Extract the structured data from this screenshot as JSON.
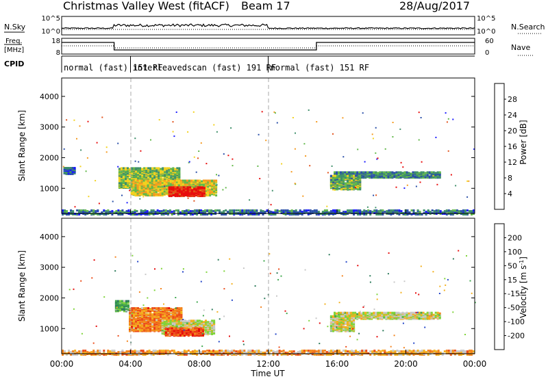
{
  "header": {
    "station": "Christmas Valley West (fitACF)",
    "beam": "Beam 17",
    "date": "28/Aug/2017"
  },
  "sky_panel": {
    "left_label": "N.Sky",
    "right_label": "N.Search",
    "tick_top": "10^5",
    "tick_bottom": "10^0",
    "right_tick_top": "10^5",
    "right_tick_bottom": "10^0"
  },
  "freq_panel": {
    "left_label_top": "Freq.",
    "left_label_bottom": "[MHz]",
    "right_label": "Nave",
    "tick_top": "18",
    "tick_bottom": "8",
    "right_tick_top": "60",
    "right_tick_bottom": "0"
  },
  "cpid_panel": {
    "label": "CPID",
    "segments": [
      {
        "start": 0,
        "end": 4,
        "text": "normal (fast)  151 RF"
      },
      {
        "start": 4,
        "end": 12,
        "text": "interleavedscan (fast) 191 RF"
      },
      {
        "start": 12,
        "end": 24,
        "text": "normal (fast)  151 RF"
      }
    ]
  },
  "chart_data": [
    {
      "type": "heatmap",
      "name": "power",
      "ylabel": "Slant Range [km]",
      "yticks": [
        "1000",
        "2000",
        "3000",
        "4000"
      ],
      "colorbar_label": "Power [dB]",
      "colorbar_ticks": [
        "4",
        "8",
        "12",
        "16",
        "20",
        "24",
        "28"
      ],
      "colorbar_colors": [
        "#1a1aff",
        "#2a4fa8",
        "#3f8f6a",
        "#62b84a",
        "#f3d21e",
        "#f59b20",
        "#e2521b",
        "#e80d0d"
      ],
      "range_km": [
        180,
        4600
      ],
      "x_hours": [
        0,
        24
      ],
      "regions": [
        {
          "t0": 3.3,
          "t1": 6.8,
          "r0": 1050,
          "r1": 1700,
          "level": 0.45
        },
        {
          "t0": 4.0,
          "t1": 9.0,
          "r0": 800,
          "r1": 1300,
          "level": 0.55
        },
        {
          "t0": 6.2,
          "t1": 8.3,
          "r0": 780,
          "r1": 1080,
          "level": 0.95
        },
        {
          "t0": 0.1,
          "t1": 0.8,
          "r0": 1500,
          "r1": 1700,
          "level": 0.2
        },
        {
          "t0": 15.8,
          "t1": 22.0,
          "r0": 1380,
          "r1": 1560,
          "level": 0.3
        },
        {
          "t0": 15.6,
          "t1": 17.3,
          "r0": 1000,
          "r1": 1450,
          "level": 0.4
        },
        {
          "t0": 0.0,
          "t1": 24.0,
          "r0": 180,
          "r1": 320,
          "level": 0.25
        }
      ]
    },
    {
      "type": "heatmap",
      "name": "velocity",
      "ylabel": "Slant Range [km]",
      "yticks": [
        "1000",
        "2000",
        "3000",
        "4000"
      ],
      "colorbar_label": "Velocity [m s^-1]",
      "colorbar_ticks": [
        "200",
        "100",
        "50",
        "15",
        "-15",
        "-50",
        "-100",
        "-200"
      ],
      "colorbar_colors": [
        "#2345c8",
        "#2e7c5c",
        "#3fa84e",
        "#7fd43a",
        "#c8c8c8",
        "#f3b01e",
        "#f4841e",
        "#ec4d1a",
        "#e60d0d"
      ],
      "range_km": [
        180,
        4600
      ],
      "x_hours": [
        0,
        24
      ],
      "regions": [
        {
          "t0": 3.9,
          "t1": 7.0,
          "r0": 950,
          "r1": 1700,
          "level": 0.72
        },
        {
          "t0": 5.8,
          "t1": 8.8,
          "r0": 850,
          "r1": 1300,
          "level": 0.5
        },
        {
          "t0": 6.0,
          "t1": 8.2,
          "r0": 800,
          "r1": 1050,
          "level": 0.85
        },
        {
          "t0": 3.1,
          "t1": 3.9,
          "r0": 1600,
          "r1": 1950,
          "level": 0.3
        },
        {
          "t0": 15.8,
          "t1": 22.0,
          "r0": 1350,
          "r1": 1560,
          "level": 0.5
        },
        {
          "t0": 15.6,
          "t1": 17.0,
          "r0": 950,
          "r1": 1450,
          "level": 0.5
        },
        {
          "t0": 0.0,
          "t1": 24.0,
          "r0": 180,
          "r1": 330,
          "level": 0.65
        }
      ]
    }
  ],
  "x_axis": {
    "label": "Time UT",
    "ticks": [
      "00:00",
      "04:00",
      "08:00",
      "12:00",
      "16:00",
      "20:00",
      "00:00"
    ]
  }
}
